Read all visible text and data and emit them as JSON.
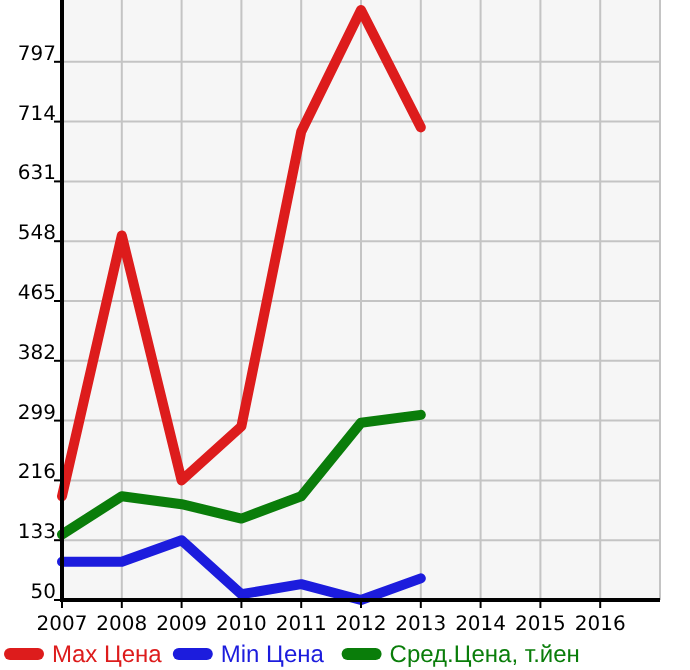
{
  "chart_data": {
    "type": "line",
    "x": [
      2007,
      2008,
      2009,
      2010,
      2011,
      2012,
      2013
    ],
    "series": [
      {
        "name": "Max Цена",
        "color": "#dd1c1c",
        "values": [
          194,
          556,
          216,
          291,
          700,
          869,
          706
        ]
      },
      {
        "name": "Min Цена",
        "color": "#1c1cdd",
        "values": [
          103,
          103,
          133,
          58,
          72,
          50,
          80
        ]
      },
      {
        "name": "Сред.Цена, т.йен",
        "color": "#0a7d0a",
        "values": [
          141,
          194,
          183,
          163,
          194,
          296,
          307
        ]
      }
    ],
    "xlim": [
      2007,
      2017
    ],
    "xticks": [
      2007,
      2008,
      2009,
      2010,
      2011,
      2012,
      2013,
      2014,
      2015,
      2016
    ],
    "ylim": [
      50,
      880
    ],
    "yticks": [
      50,
      133,
      216,
      299,
      382,
      465,
      548,
      631,
      714,
      797
    ],
    "grid": true,
    "legend": "bottom",
    "marker": "none",
    "line_style": "solid"
  }
}
